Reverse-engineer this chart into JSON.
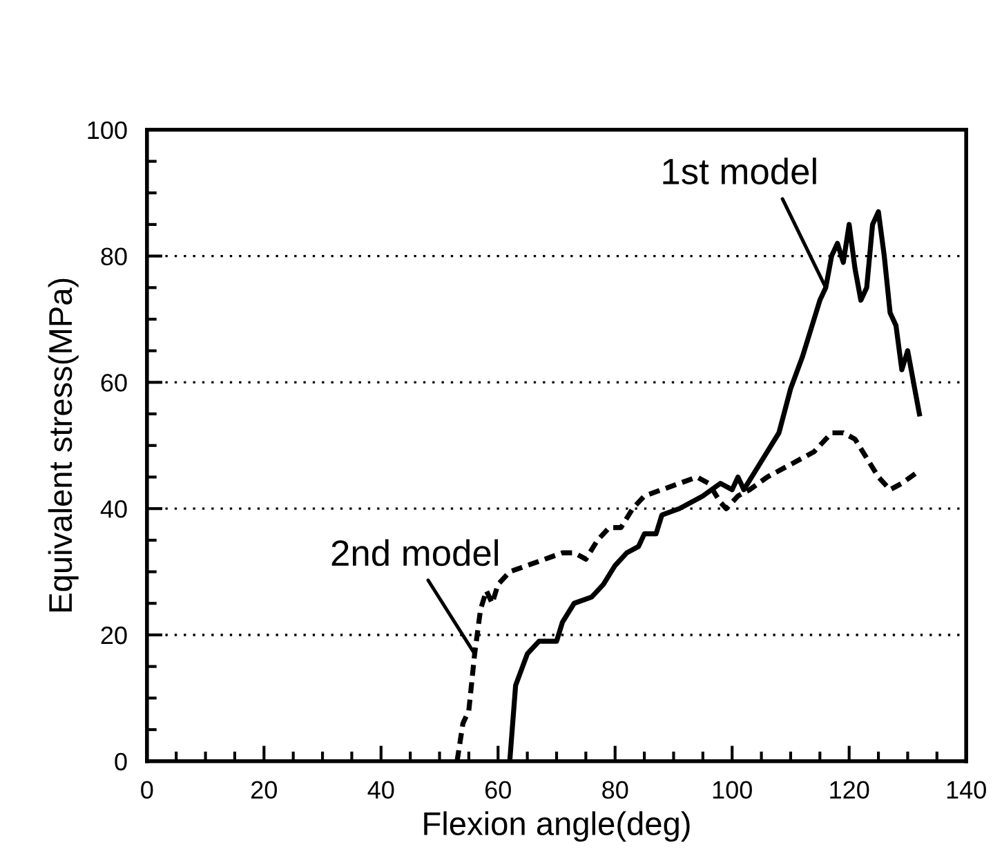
{
  "chart_data": {
    "type": "line",
    "xlabel": "Flexion angle(deg)",
    "ylabel": "Equivalent stress(MPa)",
    "xlim": [
      0,
      140
    ],
    "ylim": [
      0,
      100
    ],
    "xticks": [
      0,
      20,
      40,
      60,
      80,
      100,
      120,
      140
    ],
    "yticks": [
      0,
      20,
      40,
      60,
      80,
      100
    ],
    "grid": "y",
    "legend": false,
    "marker": "none",
    "series": [
      {
        "name": "1st model",
        "color": "#000000",
        "line_style": "solid",
        "x": [
          62,
          63,
          65,
          67,
          70,
          71,
          73,
          76,
          78,
          80,
          82,
          84,
          85,
          87,
          88,
          91,
          95,
          98,
          100,
          101,
          102,
          104,
          106,
          108,
          110,
          112,
          114,
          115,
          116,
          117,
          118,
          119,
          120,
          121,
          122,
          123,
          124,
          125,
          126,
          127,
          128,
          129,
          130,
          132
        ],
        "values": [
          0,
          12,
          17,
          19,
          19,
          22,
          25,
          26,
          28,
          31,
          33,
          34,
          36,
          36,
          39,
          40,
          42,
          44,
          43,
          45,
          43,
          46,
          49,
          52,
          59,
          64,
          70,
          73,
          75,
          80,
          82,
          79,
          85,
          78,
          73,
          75,
          85,
          87,
          80,
          71,
          69,
          62,
          65,
          55
        ]
      },
      {
        "name": "2nd model",
        "color": "#000000",
        "line_style": "dashed",
        "x": [
          53,
          54,
          55,
          56,
          57,
          58,
          59,
          60,
          62,
          65,
          68,
          71,
          73,
          75,
          77,
          79,
          81,
          83,
          85,
          88,
          91,
          94,
          96,
          98,
          99,
          101,
          103,
          106,
          110,
          114,
          117,
          119,
          121,
          123,
          125,
          127,
          129,
          132
        ],
        "values": [
          0,
          6,
          8,
          17,
          24,
          27,
          25,
          28,
          30,
          31,
          32,
          33,
          33,
          32,
          35,
          37,
          37,
          40,
          42,
          43,
          44,
          45,
          44,
          41,
          40,
          42,
          43,
          45,
          47,
          49,
          52,
          52,
          51,
          48,
          45,
          43,
          44,
          46
        ]
      }
    ]
  }
}
